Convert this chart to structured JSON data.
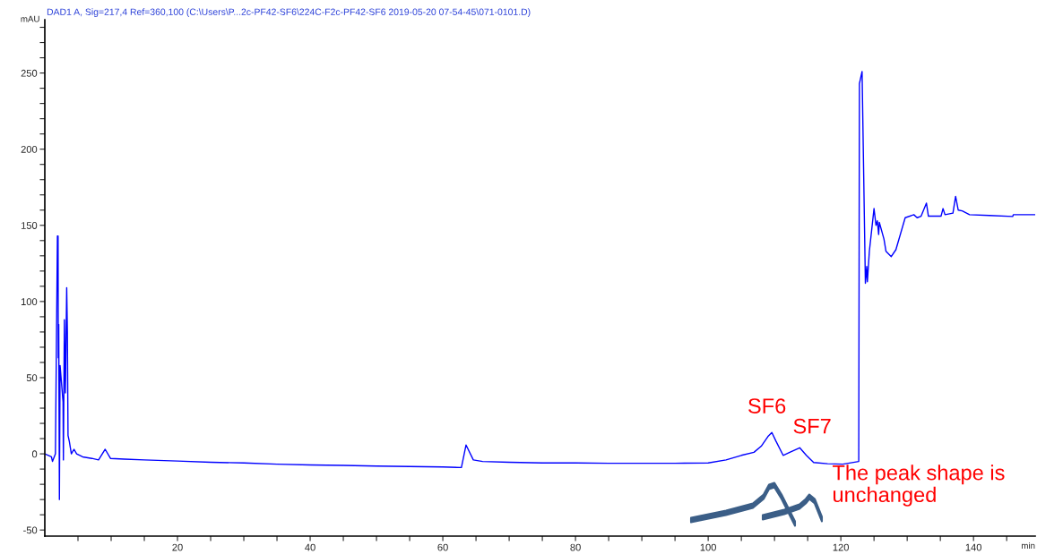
{
  "chart_data": {
    "type": "line",
    "title": "DAD1 A, Sig=217,4 Ref=360,100 (C:\\Users\\P...2c-PF42-SF6\\224C-F2c-PF42-SF6 2019-05-20 07-54-45\\071-0101.D)",
    "xlabel": "min",
    "ylabel": "mAU",
    "xlim": [
      0,
      149.3
    ],
    "ylim": [
      -54,
      285
    ],
    "xticks": [
      {
        "value": 5,
        "label": null
      },
      {
        "value": 10,
        "label": null
      },
      {
        "value": 15,
        "label": null
      },
      20,
      {
        "value": 25,
        "label": null
      },
      {
        "value": 30,
        "label": null
      },
      {
        "value": 35,
        "label": null
      },
      40,
      {
        "value": 45,
        "label": null
      },
      {
        "value": 50,
        "label": null
      },
      {
        "value": 55,
        "label": null
      },
      60,
      {
        "value": 65,
        "label": null
      },
      {
        "value": 70,
        "label": null
      },
      {
        "value": 75,
        "label": null
      },
      80,
      {
        "value": 85,
        "label": null
      },
      {
        "value": 90,
        "label": null
      },
      {
        "value": 95,
        "label": null
      },
      100,
      {
        "value": 105,
        "label": null
      },
      {
        "value": 110,
        "label": null
      },
      {
        "value": 115,
        "label": null
      },
      120,
      {
        "value": 125,
        "label": null
      },
      {
        "value": 130,
        "label": null
      },
      {
        "value": 135,
        "label": null
      },
      140,
      {
        "value": 145,
        "label": null
      }
    ],
    "yticks": [
      -50,
      {
        "value": -40,
        "label": null
      },
      {
        "value": -30,
        "label": null
      },
      {
        "value": -20,
        "label": null
      },
      {
        "value": -10,
        "label": null
      },
      0,
      {
        "value": 10,
        "label": null
      },
      {
        "value": 20,
        "label": null
      },
      {
        "value": 30,
        "label": null
      },
      {
        "value": 40,
        "label": null
      },
      50,
      {
        "value": 60,
        "label": null
      },
      {
        "value": 70,
        "label": null
      },
      {
        "value": 80,
        "label": null
      },
      {
        "value": 90,
        "label": null
      },
      100,
      {
        "value": 110,
        "label": null
      },
      {
        "value": 120,
        "label": null
      },
      {
        "value": 130,
        "label": null
      },
      {
        "value": 140,
        "label": null
      },
      150,
      {
        "value": 160,
        "label": null
      },
      {
        "value": 170,
        "label": null
      },
      {
        "value": 180,
        "label": null
      },
      {
        "value": 190,
        "label": null
      },
      200,
      {
        "value": 210,
        "label": null
      },
      {
        "value": 220,
        "label": null
      },
      {
        "value": 230,
        "label": null
      },
      {
        "value": 240,
        "label": null
      },
      250,
      {
        "value": 260,
        "label": null
      },
      {
        "value": 270,
        "label": null
      },
      {
        "value": 280,
        "label": null
      }
    ],
    "grid": false,
    "marker": "none",
    "line_style": "solid",
    "series": [
      {
        "color": "#0000ff",
        "x": [
          0,
          1.0,
          1.16,
          1.6,
          1.7,
          1.9,
          2.0,
          2.03,
          2.1,
          2.2,
          2.3,
          2.5,
          2.6,
          2.75,
          2.8,
          2.95,
          3.1,
          3.3,
          3.4,
          3.5,
          3.7,
          4.0,
          4.4,
          4.8,
          5.7,
          7.1,
          8.1,
          9.1,
          9.9,
          12,
          15,
          20,
          25,
          30,
          35,
          40,
          45,
          50,
          55,
          60,
          62.8,
          63.5,
          64.6,
          66,
          70,
          75,
          80,
          85,
          90,
          95,
          100,
          102.7,
          105,
          106.9,
          108,
          109,
          109.6,
          110.2,
          111.3,
          112.3,
          113.8,
          114.8,
          115.9,
          118,
          120.3,
          122.7,
          122.8,
          123.2,
          123.7,
          123.9,
          124.0,
          124.3,
          125.0,
          125.3,
          125.5,
          125.7,
          125.8,
          126.5,
          126.8,
          127.6,
          128.3,
          129.7,
          131.0,
          131.5,
          132.1,
          132.9,
          133.2,
          135.1,
          135.4,
          135.7,
          136.9,
          137.3,
          137.7,
          138.3,
          139.4,
          142.4,
          145.9,
          146.0,
          149.3
        ],
        "values": [
          0,
          -2,
          -5,
          0,
          48,
          143,
          143,
          63,
          85,
          -30,
          58,
          null,
          null,
          34,
          -4,
          88,
          40,
          109,
          80,
          12,
          8,
          0,
          3,
          0,
          -2,
          -3,
          -4,
          3,
          -3,
          -3.5,
          -4,
          -4.7,
          -5.5,
          -6,
          -6.8,
          -7.3,
          -7.6,
          -8,
          -8.3,
          -8.6,
          -9,
          5.8,
          -4,
          -5,
          -5.5,
          -6,
          -6,
          -6.2,
          -6.2,
          -6.2,
          -6,
          -4,
          -1,
          1,
          5,
          11.3,
          14,
          8.5,
          -1,
          1,
          4,
          -1,
          -5.7,
          -6.5,
          -6.8,
          -5,
          243,
          251,
          112,
          123,
          113,
          133,
          161,
          150,
          153,
          144,
          152,
          141,
          133,
          129.5,
          134,
          155,
          157,
          155,
          156,
          164.6,
          156,
          156,
          161,
          157,
          158,
          169,
          160,
          159.5,
          157,
          156.5,
          155.8,
          157,
          157
        ]
      }
    ],
    "annotations": [
      {
        "text": "SF6",
        "x": 109.6,
        "y": 14
      },
      {
        "text": "SF7",
        "x": 113.8,
        "y": 4
      },
      "The peak shape is\nunchanged"
    ]
  }
}
